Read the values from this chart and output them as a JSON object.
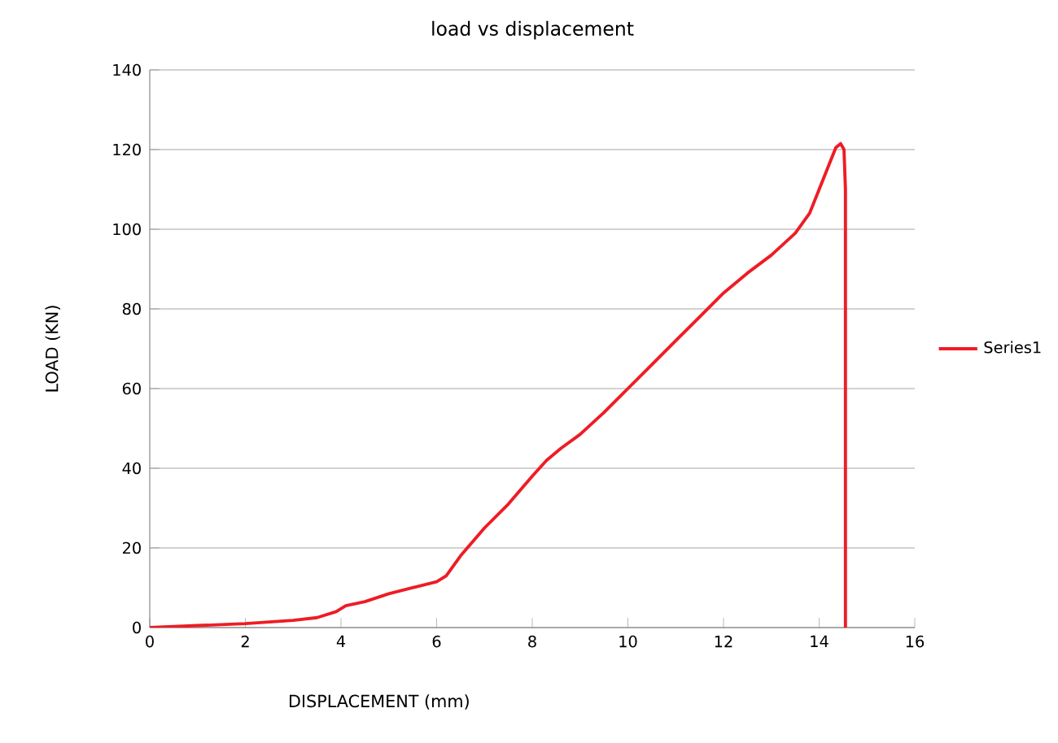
{
  "chart_data": {
    "type": "line",
    "title": "load vs displacement",
    "xlabel": "DISPLACEMENT (mm)",
    "ylabel": "LOAD (KN)",
    "xlim": [
      0,
      16
    ],
    "xticks": [
      0,
      2,
      4,
      6,
      8,
      10,
      12,
      14,
      16
    ],
    "ylim": [
      0,
      140
    ],
    "yticks": [
      0,
      20,
      40,
      60,
      80,
      100,
      120,
      140
    ],
    "grid": "y",
    "legend": "right",
    "marker": "none",
    "series": [
      {
        "name": "Series1",
        "color": "#ee1c25",
        "x": [
          0,
          1,
          2,
          3,
          3.5,
          3.9,
          4.1,
          4.5,
          5,
          5.5,
          6,
          6.2,
          6.5,
          7,
          7.5,
          8,
          8.3,
          8.6,
          9,
          9.5,
          10,
          10.5,
          11,
          11.5,
          12,
          12.5,
          13,
          13.5,
          13.8,
          14,
          14.2,
          14.35,
          14.45,
          14.52,
          14.55,
          14.55
        ],
        "values": [
          0,
          0.5,
          1,
          1.8,
          2.5,
          4,
          5.5,
          6.5,
          8.5,
          10,
          11.5,
          13,
          18,
          25,
          31,
          38,
          42,
          45,
          48.5,
          54,
          60,
          66,
          72,
          78,
          84,
          89,
          93.5,
          99,
          104,
          110,
          116,
          120.5,
          121.5,
          120,
          110,
          0
        ]
      }
    ]
  }
}
